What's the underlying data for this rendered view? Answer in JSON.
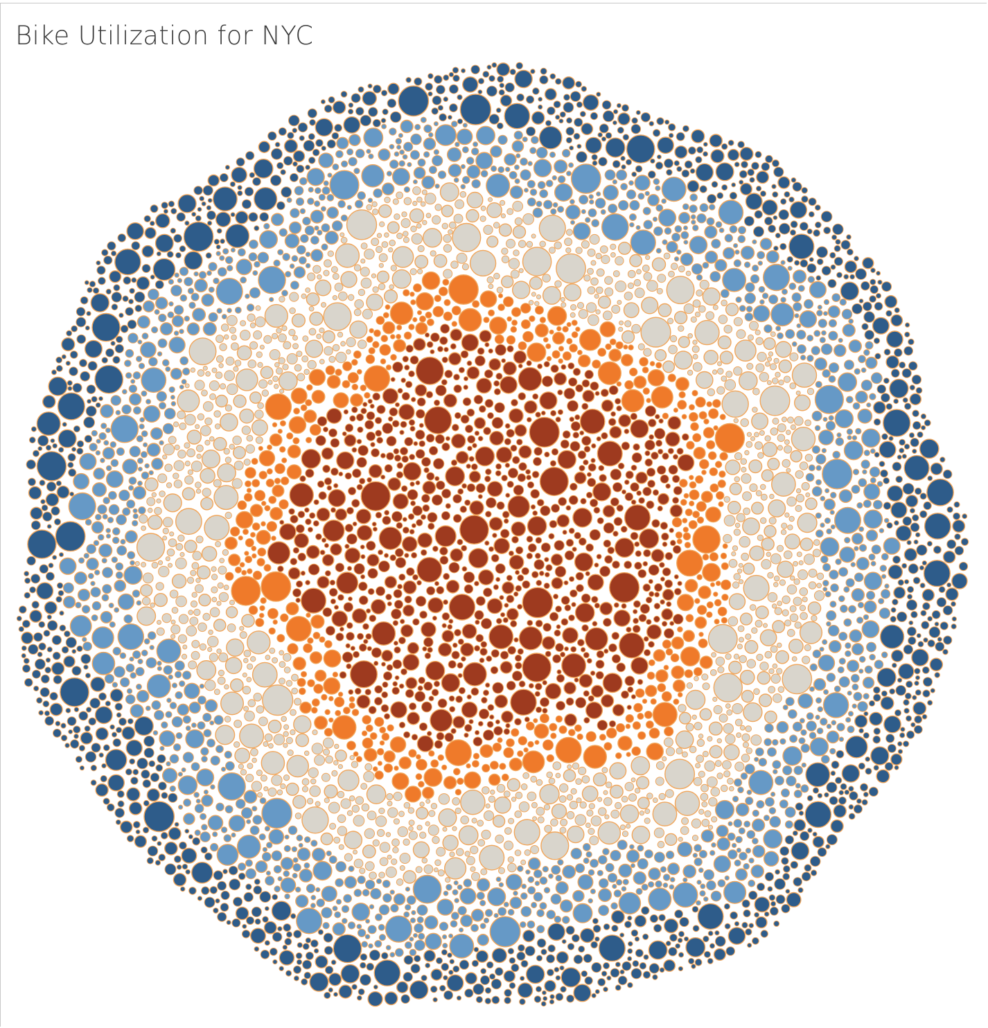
{
  "title": "Bike Utilization for NYC",
  "chart_data": {
    "type": "packed-bubble",
    "title": "Bike Utilization for NYC",
    "xlabel": "",
    "ylabel": "",
    "legend": "none",
    "grid": false,
    "bubble_border_color": "#F2A65A",
    "color_groups_center_to_edge": [
      {
        "group": 1,
        "color": "#9E3A1F",
        "approx_share": 0.23
      },
      {
        "group": 2,
        "color": "#EF7A2A",
        "approx_share": 0.08
      },
      {
        "group": 3,
        "color": "#D9D5CC",
        "approx_share": 0.22
      },
      {
        "group": 4,
        "color": "#6699C6",
        "approx_share": 0.24
      },
      {
        "group": 5,
        "color": "#2E5C8A",
        "approx_share": 0.23
      }
    ]
  }
}
